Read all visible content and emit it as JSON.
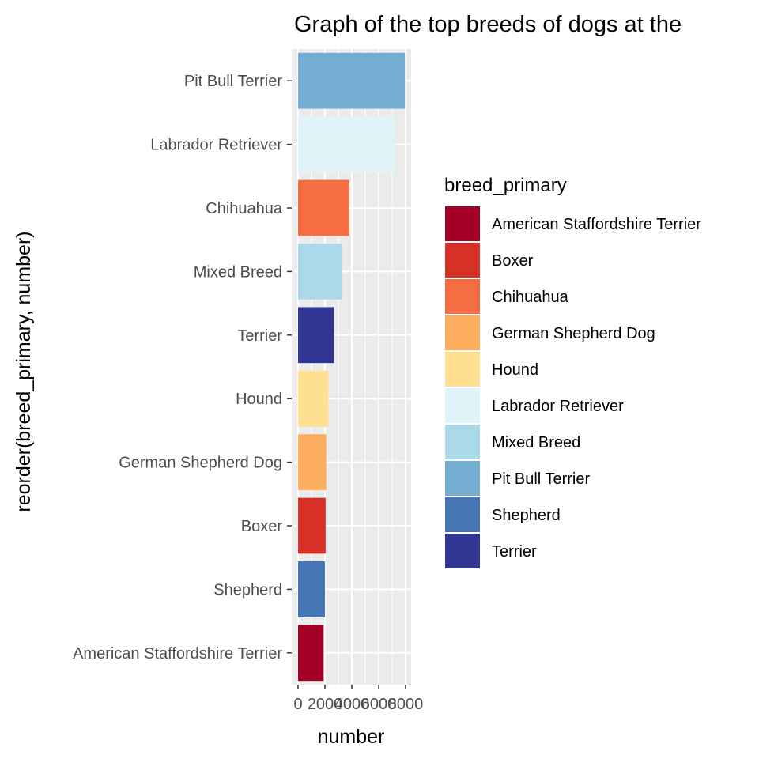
{
  "chart_data": {
    "type": "bar",
    "orientation": "horizontal",
    "title": "Graph of the top breeds of dogs at the",
    "xlabel": "number",
    "ylabel": "reorder(breed_primary, number)",
    "xlim": [
      0,
      8000
    ],
    "x_ticks": [
      "0",
      "2000",
      "4000",
      "6000",
      "8000"
    ],
    "grid": true,
    "legend_position": "right",
    "legend_title": "breed_primary",
    "categories": [
      "American Staffordshire Terrier",
      "Shepherd",
      "Boxer",
      "German Shepherd Dog",
      "Hound",
      "Terrier",
      "Mixed Breed",
      "Chihuahua",
      "Labrador Retriever",
      "Pit Bull Terrier"
    ],
    "values": [
      1900,
      2000,
      2050,
      2100,
      2250,
      2650,
      3250,
      3800,
      7200,
      7950
    ],
    "colors": [
      "#a50026",
      "#4575b4",
      "#d73027",
      "#fdae61",
      "#fee090",
      "#313695",
      "#abd9e9",
      "#f46d43",
      "#e0f3f8",
      "#74add1"
    ],
    "legend": [
      {
        "label": "American Staffordshire Terrier",
        "color": "#a50026"
      },
      {
        "label": "Boxer",
        "color": "#d73027"
      },
      {
        "label": "Chihuahua",
        "color": "#f46d43"
      },
      {
        "label": "German Shepherd Dog",
        "color": "#fdae61"
      },
      {
        "label": "Hound",
        "color": "#fee090"
      },
      {
        "label": "Labrador Retriever",
        "color": "#e0f3f8"
      },
      {
        "label": "Mixed Breed",
        "color": "#abd9e9"
      },
      {
        "label": "Pit Bull Terrier",
        "color": "#74add1"
      },
      {
        "label": "Shepherd",
        "color": "#4575b4"
      },
      {
        "label": "Terrier",
        "color": "#313695"
      }
    ]
  }
}
